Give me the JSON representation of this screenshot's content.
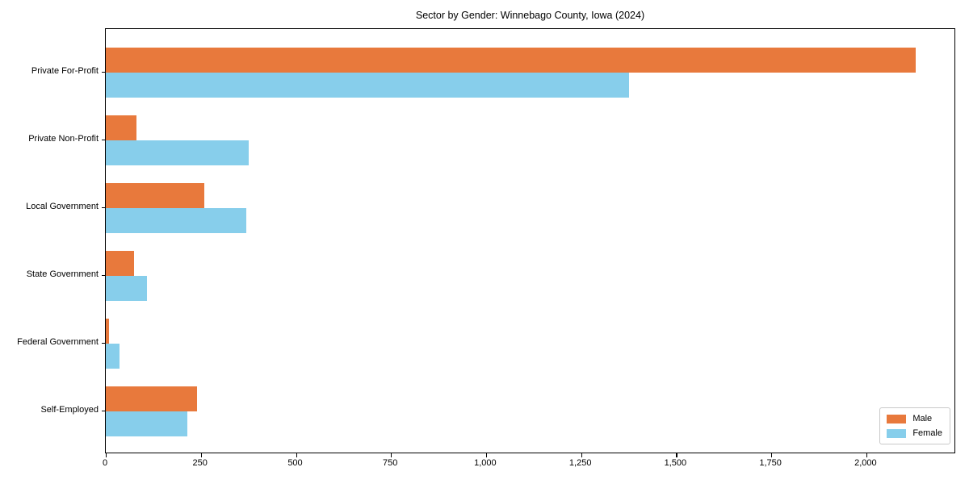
{
  "chart_data": {
    "type": "bar",
    "orientation": "horizontal",
    "title": "Sector by Gender: Winnebago County, Iowa (2024)",
    "categories": [
      "Private For-Profit",
      "Private Non-Profit",
      "Local Government",
      "State Government",
      "Federal Government",
      "Self-Employed"
    ],
    "series": [
      {
        "name": "Male",
        "color": "#e8793c",
        "values": [
          2130,
          80,
          260,
          74,
          8,
          240
        ]
      },
      {
        "name": "Female",
        "color": "#87ceeb",
        "values": [
          1375,
          375,
          370,
          108,
          35,
          215
        ]
      }
    ],
    "xlabel": "",
    "ylabel": "",
    "xlim": [
      0,
      2236
    ],
    "xticks": [
      0,
      250,
      500,
      750,
      1000,
      1250,
      1500,
      1750,
      2000
    ],
    "xtick_labels": [
      "0",
      "250",
      "500",
      "750",
      "1,000",
      "1,250",
      "1,500",
      "1,750",
      "2,000"
    ],
    "grid": false,
    "legend_position": "lower right",
    "legend_entries": [
      "Male",
      "Female"
    ]
  },
  "colors": {
    "male": "#e8793c",
    "female": "#87ceeb",
    "spine": "#000000",
    "legend_border": "#c9c9c9",
    "background": "#ffffff"
  }
}
